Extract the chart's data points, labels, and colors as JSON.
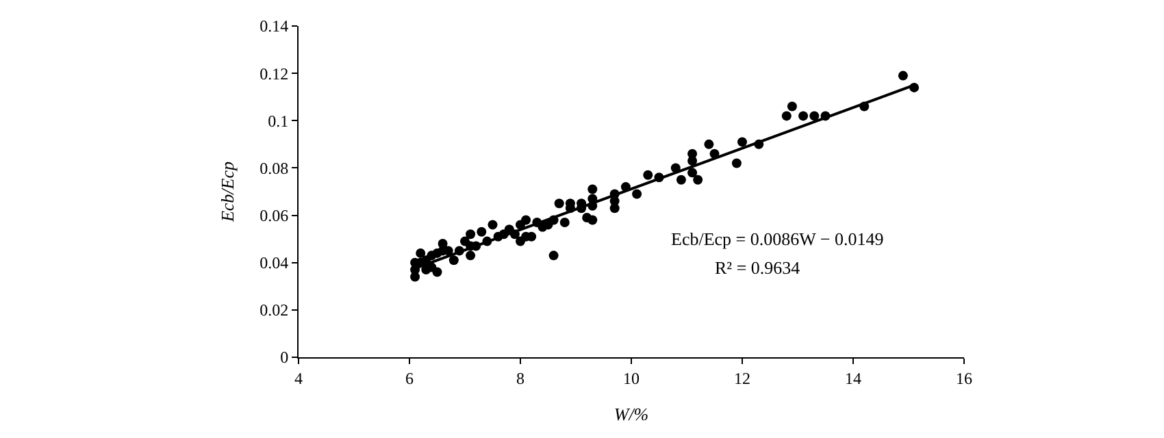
{
  "chart_data": {
    "type": "scatter",
    "xlabel": "W/%",
    "ylabel": "Ecb/Ecp",
    "xlim": [
      4,
      16
    ],
    "xticks": [
      4,
      6,
      8,
      10,
      12,
      14,
      16
    ],
    "ylim": [
      0,
      0.14
    ],
    "yticks": [
      0,
      0.02,
      0.04,
      0.06,
      0.08,
      0.1,
      0.12,
      0.14
    ],
    "marker": "circle",
    "annotations": [
      "Ecb/Ecp = 0.0086W − 0.0149",
      "R² = 0.9634"
    ],
    "series": [
      {
        "color": "#000000",
        "x": [
          14.9,
          15.1,
          14.2,
          12.9,
          12.8,
          13.1,
          13.3,
          13.5,
          12.3,
          12.0,
          11.9,
          11.4,
          11.5,
          11.1,
          11.1,
          11.1,
          11.2,
          10.9,
          10.8,
          10.5,
          10.3,
          10.1,
          9.9,
          9.7,
          9.7,
          9.7,
          9.3,
          9.3,
          9.3,
          9.3,
          9.2,
          9.1,
          9.1,
          8.9,
          8.9,
          8.7,
          8.8,
          8.6,
          8.6,
          8.5,
          8.4,
          8.3,
          8.1,
          8.0,
          8.0,
          8.2,
          8.1,
          7.9,
          7.8,
          7.5,
          7.6,
          7.3,
          7.1,
          7.1,
          7.1,
          7.0,
          6.9,
          6.8,
          6.6,
          6.6,
          6.7,
          6.5,
          6.5,
          6.4,
          6.4,
          6.3,
          6.3,
          6.2,
          6.2,
          6.1,
          6.1,
          6.1,
          7.2,
          7.4,
          7.7
        ],
        "values": [
          0.119,
          0.114,
          0.106,
          0.106,
          0.102,
          0.102,
          0.102,
          0.102,
          0.09,
          0.091,
          0.082,
          0.09,
          0.086,
          0.086,
          0.083,
          0.078,
          0.075,
          0.075,
          0.08,
          0.076,
          0.077,
          0.069,
          0.072,
          0.069,
          0.063,
          0.066,
          0.071,
          0.067,
          0.064,
          0.058,
          0.059,
          0.065,
          0.063,
          0.065,
          0.063,
          0.065,
          0.057,
          0.043,
          0.058,
          0.056,
          0.055,
          0.057,
          0.058,
          0.056,
          0.049,
          0.051,
          0.051,
          0.052,
          0.054,
          0.056,
          0.051,
          0.053,
          0.052,
          0.047,
          0.043,
          0.049,
          0.045,
          0.041,
          0.048,
          0.045,
          0.045,
          0.044,
          0.036,
          0.043,
          0.038,
          0.041,
          0.037,
          0.044,
          0.04,
          0.04,
          0.037,
          0.034,
          0.047,
          0.049,
          0.052
        ]
      },
      {
        "type": "line",
        "color": "#000000",
        "marker": "none",
        "line_style": "solid",
        "x": [
          6.1,
          15.1
        ],
        "values": [
          0.0376,
          0.115
        ]
      }
    ]
  }
}
